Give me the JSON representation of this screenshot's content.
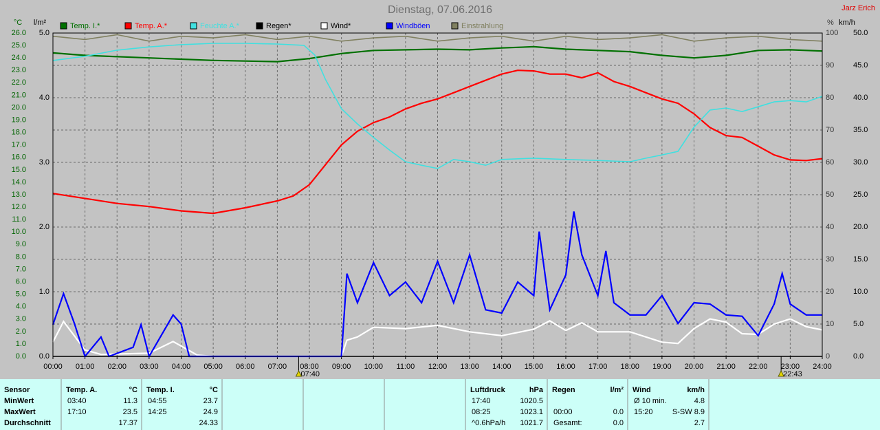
{
  "chart_data": {
    "type": "line",
    "title": "Dienstag, 07.06.2016",
    "author": "Jarz Erich",
    "xlim": [
      0,
      24
    ],
    "xticks": [
      {
        "value": 0,
        "label": "00:00"
      },
      {
        "value": 1,
        "label": "01:00"
      },
      {
        "value": 2,
        "label": "02:00"
      },
      {
        "value": 3,
        "label": "03:00"
      },
      {
        "value": 4,
        "label": "04:00"
      },
      {
        "value": 5,
        "label": "05:00"
      },
      {
        "value": 6,
        "label": "06:00"
      },
      {
        "value": 7,
        "label": "07:00"
      },
      {
        "value": 8,
        "label": "08:00"
      },
      {
        "value": 9,
        "label": "09:00"
      },
      {
        "value": 10,
        "label": "10:00"
      },
      {
        "value": 11,
        "label": "11:00"
      },
      {
        "value": 12,
        "label": "12:00"
      },
      {
        "value": 13,
        "label": "13:00"
      },
      {
        "value": 14,
        "label": "14:00"
      },
      {
        "value": 15,
        "label": "15:00"
      },
      {
        "value": 16,
        "label": "16:00"
      },
      {
        "value": 17,
        "label": "17:00"
      },
      {
        "value": 18,
        "label": "18:00"
      },
      {
        "value": 19,
        "label": "19:00"
      },
      {
        "value": 20,
        "label": "20:00"
      },
      {
        "value": 21,
        "label": "21:00"
      },
      {
        "value": 22,
        "label": "22:00"
      },
      {
        "value": 23,
        "label": "23:00"
      },
      {
        "value": 24,
        "label": "24:00"
      }
    ],
    "markers": [
      {
        "x": 7.6667,
        "label": "07:40"
      },
      {
        "x": 22.7167,
        "label": "22:43"
      }
    ],
    "axes": [
      {
        "label": "°C",
        "lim": [
          0,
          26
        ],
        "color": "#006400",
        "ticks": [
          {
            "value": 0,
            "label": "0.0"
          },
          {
            "value": 1,
            "label": "1.0"
          },
          {
            "value": 2,
            "label": "2.0"
          },
          {
            "value": 3,
            "label": "3.0"
          },
          {
            "value": 4,
            "label": "4.0"
          },
          {
            "value": 5,
            "label": "5.0"
          },
          {
            "value": 6,
            "label": "6.0"
          },
          {
            "value": 7,
            "label": "7.0"
          },
          {
            "value": 8,
            "label": "8.0"
          },
          {
            "value": 9,
            "label": "9.0"
          },
          {
            "value": 10,
            "label": "10.0"
          },
          {
            "value": 11,
            "label": "11.0"
          },
          {
            "value": 12,
            "label": "12.0"
          },
          {
            "value": 13,
            "label": "13.0"
          },
          {
            "value": 14,
            "label": "14.0"
          },
          {
            "value": 15,
            "label": "15.0"
          },
          {
            "value": 16,
            "label": "16.0"
          },
          {
            "value": 17,
            "label": "17.0"
          },
          {
            "value": 18,
            "label": "18.0"
          },
          {
            "value": 19,
            "label": "19.0"
          },
          {
            "value": 20,
            "label": "20.0"
          },
          {
            "value": 21,
            "label": "21.0"
          },
          {
            "value": 22,
            "label": "22.0"
          },
          {
            "value": 23,
            "label": "23.0"
          },
          {
            "value": 24,
            "label": "24.0"
          },
          {
            "value": 25,
            "label": "25.0"
          },
          {
            "value": 26,
            "label": "26.0"
          }
        ]
      },
      {
        "label": "l/m²",
        "lim": [
          0,
          5
        ],
        "color": "#000000",
        "ticks": [
          {
            "value": 0,
            "label": "0.0"
          },
          {
            "value": 1,
            "label": "1.0"
          },
          {
            "value": 2,
            "label": "2.0"
          },
          {
            "value": 3,
            "label": "3.0"
          },
          {
            "value": 4,
            "label": "4.0"
          },
          {
            "value": 5,
            "label": "5.0"
          }
        ]
      },
      {
        "label": "%",
        "lim": [
          0,
          100
        ],
        "color": "#3a3a3a",
        "grid": true,
        "ticks": [
          0,
          10,
          20,
          30,
          40,
          50,
          60,
          70,
          80,
          90,
          100
        ]
      },
      {
        "label": "km/h",
        "lim": [
          0,
          50
        ],
        "color": "#000000",
        "ticks": [
          {
            "value": 0,
            "label": "0.0"
          },
          {
            "value": 5,
            "label": "5.0"
          },
          {
            "value": 10,
            "label": "10.0"
          },
          {
            "value": 15,
            "label": "15.0"
          },
          {
            "value": 20,
            "label": "20.0"
          },
          {
            "value": 25,
            "label": "25.0"
          },
          {
            "value": 30,
            "label": "30.0"
          },
          {
            "value": 35,
            "label": "35.0"
          },
          {
            "value": 40,
            "label": "40.0"
          },
          {
            "value": 45,
            "label": "45.0"
          },
          {
            "value": 50,
            "label": "50.0"
          }
        ]
      }
    ],
    "series": [
      {
        "name": "Temp. I.*",
        "color": "#007000",
        "axis": 0,
        "x": [
          0,
          1,
          3,
          5,
          7,
          8,
          9,
          10,
          12,
          13,
          14,
          15,
          16,
          18,
          19,
          20,
          21,
          22,
          23,
          24
        ],
        "values": [
          24.4,
          24.2,
          24.0,
          23.8,
          23.7,
          23.95,
          24.35,
          24.6,
          24.7,
          24.65,
          24.8,
          24.9,
          24.7,
          24.5,
          24.2,
          24.0,
          24.2,
          24.6,
          24.65,
          24.55
        ]
      },
      {
        "name": "Temp. A.*",
        "color": "#ff0000",
        "axis": 0,
        "x": [
          0,
          1,
          2,
          3,
          4,
          5,
          6,
          7,
          7.5,
          8,
          8.5,
          9,
          9.5,
          10,
          10.5,
          11,
          11.5,
          12,
          12.5,
          13,
          13.5,
          14,
          14.5,
          15,
          15.5,
          16,
          16.5,
          17,
          17.5,
          18,
          18.5,
          19,
          19.5,
          20,
          20.5,
          21,
          21.5,
          22,
          22.5,
          23,
          23.5,
          24
        ],
        "values": [
          13.1,
          12.7,
          12.3,
          12.05,
          11.7,
          11.5,
          11.95,
          12.5,
          12.9,
          13.8,
          15.4,
          17.0,
          18.1,
          18.8,
          19.25,
          19.9,
          20.35,
          20.7,
          21.2,
          21.7,
          22.2,
          22.7,
          23.0,
          22.95,
          22.7,
          22.7,
          22.4,
          22.8,
          22.1,
          21.7,
          21.2,
          20.7,
          20.35,
          19.5,
          18.4,
          17.75,
          17.6,
          16.9,
          16.2,
          15.8,
          15.75,
          15.9
        ]
      },
      {
        "name": "Feuchte A.*",
        "color": "#40e0e0",
        "axis": 2,
        "x": [
          0,
          1,
          2,
          3,
          4,
          5,
          6,
          7,
          7.83,
          8.17,
          8.5,
          9,
          9.5,
          10,
          10.5,
          11,
          11.5,
          12,
          12.5,
          13,
          13.5,
          14,
          15,
          16,
          17,
          18,
          18.5,
          19,
          19.5,
          20,
          20.5,
          21,
          21.5,
          22,
          22.5,
          23,
          23.5,
          24
        ],
        "values": [
          91.5,
          92.8,
          94.7,
          95.7,
          96.4,
          96.8,
          96.8,
          96.6,
          96.2,
          93.2,
          85.7,
          76.6,
          71.9,
          67.7,
          63.8,
          60.2,
          59.1,
          58.1,
          60.9,
          60.2,
          59.1,
          60.9,
          61.3,
          60.9,
          60.6,
          60.2,
          61.3,
          62.3,
          63.4,
          70.9,
          76.2,
          76.8,
          75.7,
          77.2,
          78.7,
          79.1,
          78.7,
          80.4
        ]
      },
      {
        "name": "Regen*",
        "color": "#000000",
        "axis": 1,
        "x": [
          0,
          24
        ],
        "values": [
          0,
          0
        ]
      },
      {
        "name": "Wind*",
        "color": "#ffffff",
        "axis": 3,
        "x": [
          0,
          0.33,
          1,
          1.5,
          3,
          3.75,
          4.5,
          5,
          9,
          9.17,
          9.5,
          10,
          11,
          12,
          13,
          14,
          15,
          15.5,
          16,
          16.5,
          17,
          18,
          19,
          19.5,
          20,
          20.5,
          21,
          21.5,
          22,
          22.5,
          23,
          23.5,
          24
        ],
        "values": [
          2.2,
          5.4,
          1.0,
          0.3,
          0.5,
          2.3,
          0.2,
          0,
          0,
          2.5,
          3,
          4.5,
          4.3,
          4.8,
          3.8,
          3.2,
          4.2,
          5.5,
          4.0,
          5.2,
          3.8,
          3.8,
          2.2,
          2.0,
          4.3,
          5.8,
          5.3,
          3.5,
          3.4,
          5.0,
          5.8,
          4.6,
          4.1
        ]
      },
      {
        "name": "Windböen",
        "color": "#0000ff",
        "axis": 3,
        "x": [
          0,
          0.33,
          0.67,
          1,
          1.5,
          1.75,
          2.5,
          2.75,
          3,
          3.75,
          4,
          4.25,
          9,
          9.17,
          9.5,
          10,
          10.5,
          11,
          11.5,
          12,
          12.5,
          13,
          13.5,
          14,
          14.5,
          15,
          15.17,
          15.5,
          16,
          16.25,
          16.5,
          17,
          17.25,
          17.5,
          18,
          18.5,
          19,
          19.5,
          20,
          20.5,
          21,
          21.5,
          22,
          22.5,
          22.75,
          23,
          23.5,
          24
        ],
        "values": [
          4.9,
          9.7,
          5.1,
          0,
          3,
          0,
          1.4,
          4.9,
          0,
          6.4,
          5.0,
          0,
          0,
          12.8,
          8.3,
          14.5,
          9.4,
          11.5,
          8.3,
          14.7,
          8.3,
          15.7,
          7.2,
          6.7,
          11.5,
          9.4,
          19.3,
          7.2,
          12.6,
          22.4,
          15.7,
          9.4,
          16.3,
          8.3,
          6.4,
          6.4,
          9.4,
          5.1,
          8.3,
          8.1,
          6.4,
          6.2,
          3.2,
          8.1,
          12.8,
          8.1,
          6.4,
          6.4
        ]
      },
      {
        "name": "Einstrahlung",
        "color": "#808060",
        "axis": 2,
        "x": [
          0,
          1,
          2,
          3,
          4,
          5,
          6,
          7,
          8,
          9,
          10,
          11,
          12,
          13,
          14,
          15,
          16,
          17,
          18,
          19,
          20,
          21,
          22,
          23,
          24
        ],
        "values": [
          99,
          98,
          99.5,
          97.5,
          99,
          98.5,
          99.5,
          98,
          99,
          97.5,
          98.5,
          99,
          97.5,
          98.5,
          99,
          97.5,
          99,
          98,
          98.5,
          99.5,
          97.5,
          98.5,
          99,
          98,
          97.5
        ]
      }
    ]
  },
  "table": {
    "columns": [
      {
        "header": "Sensor",
        "cells": [
          {
            "l": "MinWert"
          },
          {
            "l": "MaxWert"
          },
          {
            "l": "Durchschnitt"
          }
        ]
      },
      {
        "header": "Temp. A.",
        "unit": "°C",
        "cells": [
          {
            "l": "03:40",
            "r": "11.3"
          },
          {
            "l": "17:10",
            "r": "23.5"
          },
          {
            "r": "17.37"
          }
        ]
      },
      {
        "header": "Temp. I.",
        "unit": "°C",
        "cells": [
          {
            "l": "04:55",
            "r": "23.7"
          },
          {
            "l": "14:25",
            "r": "24.9"
          },
          {
            "r": "24.33"
          }
        ]
      },
      {
        "header": "Luftdruck",
        "unit": "hPa",
        "cells": [
          {
            "l": "17:40",
            "r": "1020.5"
          },
          {
            "l": "08:25",
            "r": "1023.1"
          },
          {
            "l": "^0.6hPa/h",
            "r": "1021.7"
          }
        ]
      },
      {
        "header": "Regen",
        "unit": "l/m²",
        "cells": [
          null,
          {
            "l": "00:00",
            "r": "0.0"
          },
          {
            "l": "Gesamt:",
            "r": "0.0"
          }
        ]
      },
      {
        "header": "Wind",
        "unit": "km/h",
        "cells": [
          {
            "l": "Ø 10 min.",
            "r": "4.8"
          },
          {
            "l": "15:20",
            "r": "S-SW 8.9"
          },
          {
            "r": "2.7"
          }
        ]
      }
    ]
  }
}
